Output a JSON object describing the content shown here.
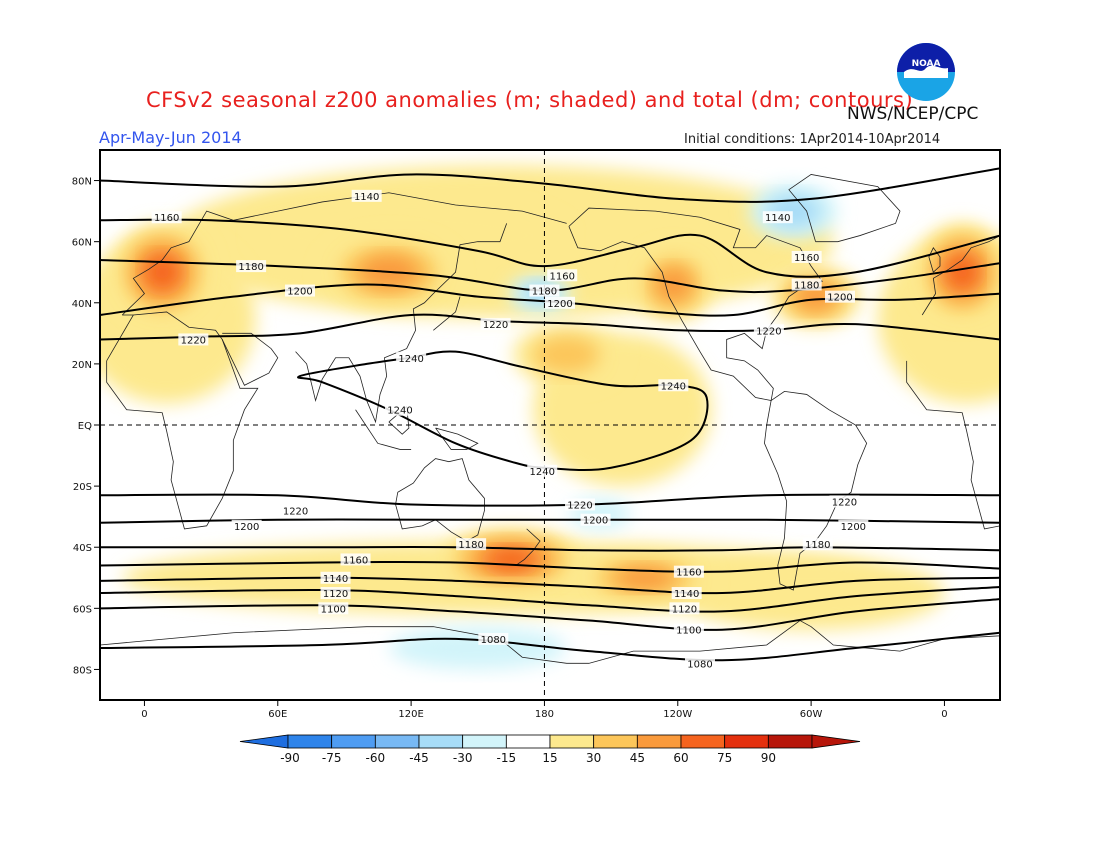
{
  "header": {
    "title": "CFSv2 seasonal z200 anomalies (m; shaded) and total (dm; contours)",
    "agency": "NWS/NCEP/CPC",
    "season": "Apr-May-Jun 2014",
    "initial_conditions": "Initial conditions: 1Apr2014-10Apr2014",
    "logo_text": "NOAA"
  },
  "axes": {
    "lat_ticks": [
      {
        "lat": 80,
        "label": "80N"
      },
      {
        "lat": 60,
        "label": "60N"
      },
      {
        "lat": 40,
        "label": "40N"
      },
      {
        "lat": 20,
        "label": "20N"
      },
      {
        "lat": 0,
        "label": "EQ"
      },
      {
        "lat": -20,
        "label": "20S"
      },
      {
        "lat": -40,
        "label": "40S"
      },
      {
        "lat": -60,
        "label": "60S"
      },
      {
        "lat": -80,
        "label": "80S"
      }
    ],
    "lon_ticks": [
      {
        "lon": 0,
        "label": "0"
      },
      {
        "lon": 60,
        "label": "60E"
      },
      {
        "lon": 120,
        "label": "120E"
      },
      {
        "lon": 180,
        "label": "180"
      },
      {
        "lon": 240,
        "label": "120W"
      },
      {
        "lon": 300,
        "label": "60W"
      },
      {
        "lon": 360,
        "label": "0"
      }
    ],
    "lon_range": [
      -20,
      385
    ],
    "lat_range": [
      -90,
      90
    ]
  },
  "colorbar": {
    "labels": [
      "-90",
      "-75",
      "-60",
      "-45",
      "-30",
      "-15",
      "15",
      "30",
      "45",
      "60",
      "75",
      "90"
    ],
    "colors": [
      "#1e6ee0",
      "#2e84ea",
      "#4e9cf2",
      "#78b9f4",
      "#a7dcf7",
      "#d2f4fa",
      "#ffffff",
      "#fde98e",
      "#fcc65a",
      "#f99a3c",
      "#f5641f",
      "#e4300e",
      "#b7160a"
    ]
  },
  "contours": [
    {
      "label": "1140",
      "points": [
        [
          -20,
          80
        ],
        [
          60,
          78
        ],
        [
          120,
          82
        ],
        [
          180,
          79
        ],
        [
          240,
          74
        ],
        [
          300,
          74
        ],
        [
          385,
          84
        ]
      ],
      "marks": [
        [
          100,
          75
        ],
        [
          285,
          68
        ]
      ]
    },
    {
      "label": "1160",
      "points": [
        [
          -20,
          67
        ],
        [
          30,
          67
        ],
        [
          90,
          64
        ],
        [
          150,
          57
        ],
        [
          180,
          52
        ],
        [
          220,
          58
        ],
        [
          250,
          62
        ],
        [
          280,
          50
        ],
        [
          320,
          50
        ],
        [
          385,
          62
        ]
      ],
      "marks": [
        [
          10,
          68
        ],
        [
          188,
          49
        ],
        [
          298,
          55
        ]
      ]
    },
    {
      "label": "1180",
      "points": [
        [
          -20,
          54
        ],
        [
          60,
          52
        ],
        [
          130,
          49
        ],
        [
          180,
          44
        ],
        [
          220,
          48
        ],
        [
          260,
          44
        ],
        [
          290,
          44
        ],
        [
          340,
          48
        ],
        [
          385,
          53
        ]
      ],
      "marks": [
        [
          48,
          52
        ],
        [
          180,
          44
        ],
        [
          298,
          46
        ]
      ]
    },
    {
      "label": "1200",
      "points": [
        [
          -20,
          36
        ],
        [
          40,
          42
        ],
        [
          100,
          46
        ],
        [
          150,
          42
        ],
        [
          190,
          40
        ],
        [
          230,
          37
        ],
        [
          265,
          36
        ],
        [
          300,
          41
        ],
        [
          340,
          41
        ],
        [
          385,
          43
        ]
      ],
      "marks": [
        [
          70,
          44
        ],
        [
          187,
          40
        ],
        [
          313,
          42
        ]
      ]
    },
    {
      "label": "1220",
      "points": [
        [
          -20,
          28
        ],
        [
          30,
          29
        ],
        [
          70,
          30
        ],
        [
          120,
          36
        ],
        [
          160,
          34
        ],
        [
          200,
          33
        ],
        [
          240,
          31
        ],
        [
          280,
          31
        ],
        [
          320,
          33
        ],
        [
          385,
          28
        ]
      ],
      "marks": [
        [
          22,
          28
        ],
        [
          158,
          33
        ],
        [
          281,
          31
        ]
      ]
    },
    {
      "label": "1240",
      "points": [
        [
          120,
          22
        ],
        [
          140,
          24
        ],
        [
          170,
          19
        ],
        [
          210,
          13
        ],
        [
          240,
          13
        ],
        [
          253,
          9
        ],
        [
          246,
          -5
        ],
        [
          210,
          -14
        ],
        [
          180,
          -14
        ],
        [
          165,
          -12
        ],
        [
          140,
          -6
        ],
        [
          110,
          5
        ],
        [
          80,
          14
        ],
        [
          70,
          16
        ],
        [
          100,
          20
        ],
        [
          120,
          22
        ]
      ],
      "marks": [
        [
          120,
          22
        ],
        [
          238,
          13
        ],
        [
          115,
          5
        ],
        [
          179,
          -15
        ]
      ]
    },
    {
      "label": "1220",
      "points": [
        [
          -20,
          -23
        ],
        [
          60,
          -23
        ],
        [
          120,
          -26
        ],
        [
          200,
          -26
        ],
        [
          280,
          -23
        ],
        [
          385,
          -23
        ]
      ],
      "marks": [
        [
          68,
          -28
        ],
        [
          196,
          -26
        ],
        [
          315,
          -25
        ]
      ]
    },
    {
      "label": "1200",
      "points": [
        [
          -20,
          -32
        ],
        [
          60,
          -31
        ],
        [
          140,
          -31
        ],
        [
          200,
          -31
        ],
        [
          280,
          -31
        ],
        [
          385,
          -32
        ]
      ],
      "marks": [
        [
          46,
          -33
        ],
        [
          203,
          -31
        ],
        [
          319,
          -33
        ]
      ]
    },
    {
      "label": "1180",
      "points": [
        [
          -20,
          -40
        ],
        [
          80,
          -40
        ],
        [
          140,
          -40
        ],
        [
          200,
          -41
        ],
        [
          260,
          -41
        ],
        [
          300,
          -40
        ],
        [
          385,
          -41
        ]
      ],
      "marks": [
        [
          147,
          -39
        ],
        [
          303,
          -39
        ]
      ]
    },
    {
      "label": "1160",
      "points": [
        [
          -20,
          -46
        ],
        [
          80,
          -45
        ],
        [
          140,
          -45
        ],
        [
          200,
          -47
        ],
        [
          260,
          -48
        ],
        [
          320,
          -45
        ],
        [
          385,
          -47
        ]
      ],
      "marks": [
        [
          95,
          -44
        ],
        [
          245,
          -48
        ]
      ]
    },
    {
      "label": "1140",
      "points": [
        [
          -20,
          -51
        ],
        [
          80,
          -50
        ],
        [
          140,
          -51
        ],
        [
          200,
          -53
        ],
        [
          260,
          -55
        ],
        [
          320,
          -51
        ],
        [
          385,
          -50
        ]
      ],
      "marks": [
        [
          86,
          -50
        ],
        [
          244,
          -55
        ]
      ]
    },
    {
      "label": "1120",
      "points": [
        [
          -20,
          -55
        ],
        [
          80,
          -54
        ],
        [
          140,
          -56
        ],
        [
          200,
          -59
        ],
        [
          260,
          -61
        ],
        [
          320,
          -56
        ],
        [
          385,
          -53
        ]
      ],
      "marks": [
        [
          86,
          -55
        ],
        [
          243,
          -60
        ]
      ]
    },
    {
      "label": "1100",
      "points": [
        [
          -20,
          -60
        ],
        [
          80,
          -59
        ],
        [
          140,
          -61
        ],
        [
          200,
          -64
        ],
        [
          260,
          -67
        ],
        [
          320,
          -61
        ],
        [
          385,
          -57
        ]
      ],
      "marks": [
        [
          85,
          -60
        ],
        [
          245,
          -67
        ]
      ]
    },
    {
      "label": "1080",
      "points": [
        [
          -20,
          -73
        ],
        [
          80,
          -72
        ],
        [
          140,
          -70
        ],
        [
          200,
          -74
        ],
        [
          260,
          -77
        ],
        [
          320,
          -73
        ],
        [
          385,
          -68
        ]
      ],
      "marks": [
        [
          157,
          -70
        ],
        [
          250,
          -78
        ]
      ]
    }
  ],
  "anomalies": [
    {
      "lon": 8,
      "lat": 50,
      "rx": 22,
      "ry": 16,
      "value": 62
    },
    {
      "lon": 368,
      "lat": 50,
      "rx": 20,
      "ry": 16,
      "value": 62
    },
    {
      "lon": 110,
      "lat": 50,
      "rx": 30,
      "ry": 12,
      "value": 58
    },
    {
      "lon": 238,
      "lat": 46,
      "rx": 18,
      "ry": 12,
      "value": 48
    },
    {
      "lon": 302,
      "lat": 42,
      "rx": 20,
      "ry": 10,
      "value": 52
    },
    {
      "lon": 190,
      "lat": 23,
      "rx": 24,
      "ry": 10,
      "value": 40
    },
    {
      "lon": 165,
      "lat": -44,
      "rx": 32,
      "ry": 10,
      "value": 62
    },
    {
      "lon": 225,
      "lat": -50,
      "rx": 30,
      "ry": 8,
      "value": 58
    },
    {
      "lon": 292,
      "lat": 70,
      "rx": 20,
      "ry": 9,
      "value": -40
    },
    {
      "lon": 178,
      "lat": 43,
      "rx": 14,
      "ry": 6,
      "value": -30
    },
    {
      "lon": 205,
      "lat": -29,
      "rx": 14,
      "ry": 5,
      "value": -28
    },
    {
      "lon": 150,
      "lat": -73,
      "rx": 40,
      "ry": 7,
      "value": -22
    }
  ]
}
